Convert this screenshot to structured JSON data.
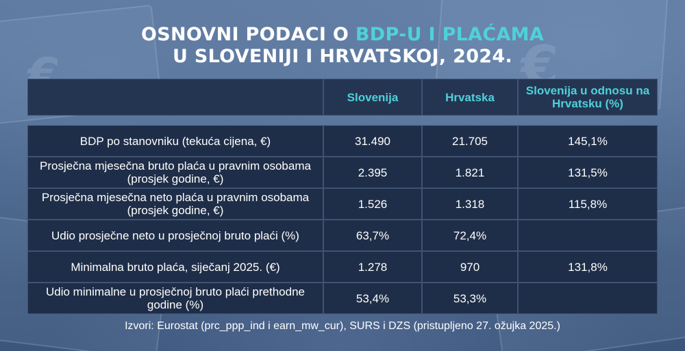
{
  "title": {
    "line1_prefix": "OSNOVNI PODACI O ",
    "line1_highlight": "BDP-U I PLAĆAMA",
    "line2": "U SLOVENIJI I HRVATSKOJ, 2024."
  },
  "colors": {
    "accent": "#4fd1d9",
    "table_bg": "#1f2e48",
    "background": "#3a5478"
  },
  "chart_data": {
    "type": "table",
    "columns": [
      "",
      "Slovenija",
      "Hrvatska",
      "Slovenija u odnosu na Hrvatsku (%)"
    ],
    "rows": [
      [
        "BDP po stanovniku (tekuća cijena, €)",
        "31.490",
        "21.705",
        "145,1%"
      ],
      [
        "Prosječna mjesečna bruto plaća u pravnim osobama (prosjek godine, €)",
        "2.395",
        "1.821",
        "131,5%"
      ],
      [
        "Prosječna mjesečna neto plaća u pravnim osobama (prosjek godine, €)",
        "1.526",
        "1.318",
        "115,8%"
      ],
      [
        "Udio prosječne neto u prosječnoj bruto plaći (%)",
        "63,7%",
        "72,4%",
        ""
      ],
      [
        "Minimalna bruto plaća, siječanj 2025. (€)",
        "1.278",
        "970",
        "131,8%"
      ],
      [
        "Udio minimalne u prosječnoj bruto plaći prethodne godine (%)",
        "53,4%",
        "53,3%",
        ""
      ]
    ]
  },
  "source": "Izvori: Eurostat (prc_ppp_ind i earn_mw_cur), SURS i DZS (pristupljeno 27. ožujka 2025.)"
}
